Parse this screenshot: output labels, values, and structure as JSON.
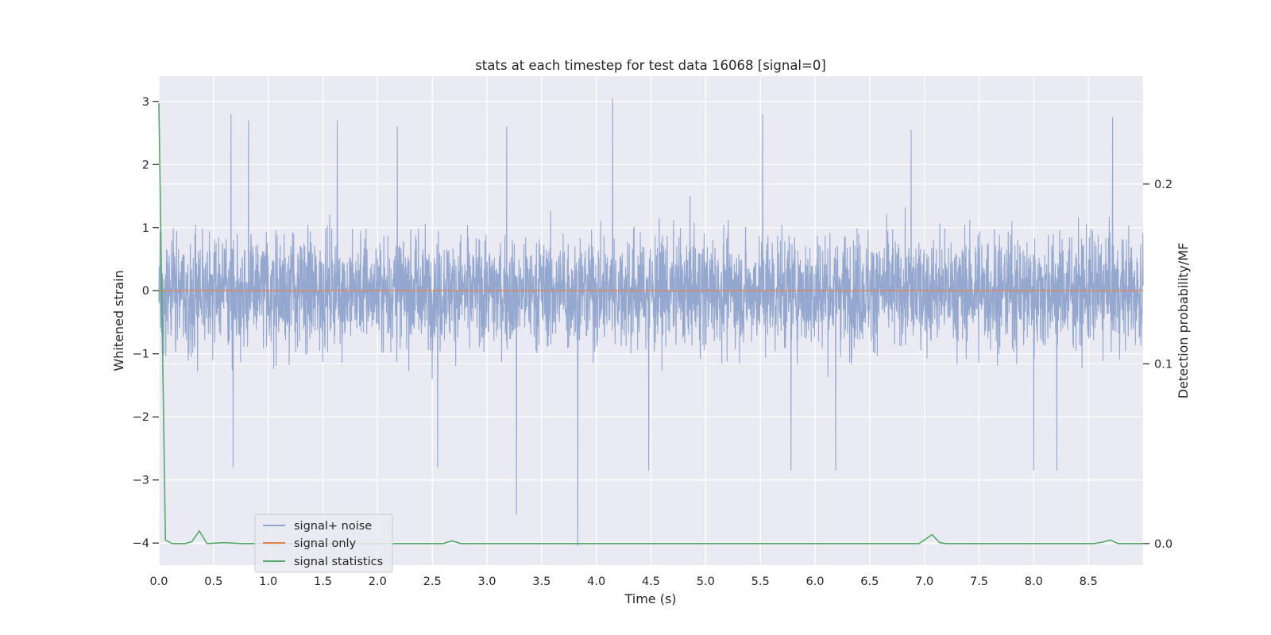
{
  "chart_data": {
    "type": "line",
    "title": "stats at each timestep for test data 16068 [signal=0]",
    "xlabel": "Time (s)",
    "ylabel": "Whitened strain",
    "y2label": "Detection probability/MF",
    "xlim": [
      0.0,
      9.0
    ],
    "ylim": [
      -4.35,
      3.4
    ],
    "y2lim": [
      -0.012,
      0.26
    ],
    "xticks": [
      "0.0",
      "0.5",
      "1.0",
      "1.5",
      "2.0",
      "2.5",
      "3.0",
      "3.5",
      "4.0",
      "4.5",
      "5.0",
      "5.5",
      "6.0",
      "6.5",
      "7.0",
      "7.5",
      "8.0",
      "8.5"
    ],
    "yticks": [
      "3",
      "2",
      "1",
      "0",
      "−1",
      "−2",
      "−3",
      "−4"
    ],
    "y2ticks": [
      "0.2",
      "0.1",
      "0.0"
    ],
    "grid": true,
    "legend_position": "lower-left",
    "legend": [
      {
        "label": "signal+ noise",
        "color": "#8fa3cc"
      },
      {
        "label": "signal only",
        "color": "#dd8452"
      },
      {
        "label": "signal statistics",
        "color": "#55a868"
      }
    ],
    "series": [
      {
        "name": "signal+ noise",
        "axis": "left",
        "color": "#8fa3cc",
        "description_samples": 4096,
        "envelope": {
          "typical_max": 1.3,
          "typical_min": -1.4
        },
        "spikes": [
          {
            "x": 0.66,
            "y": 2.8
          },
          {
            "x": 0.82,
            "y": 2.7
          },
          {
            "x": 1.63,
            "y": 2.7
          },
          {
            "x": 2.18,
            "y": 2.6
          },
          {
            "x": 3.18,
            "y": 2.6
          },
          {
            "x": 4.15,
            "y": 3.05
          },
          {
            "x": 5.52,
            "y": 2.8
          },
          {
            "x": 6.88,
            "y": 2.55
          },
          {
            "x": 8.72,
            "y": 2.75
          },
          {
            "x": 0.68,
            "y": -2.8
          },
          {
            "x": 2.55,
            "y": -2.8
          },
          {
            "x": 3.27,
            "y": -3.55
          },
          {
            "x": 3.83,
            "y": -4.05
          },
          {
            "x": 4.48,
            "y": -2.85
          },
          {
            "x": 5.78,
            "y": -2.85
          },
          {
            "x": 6.19,
            "y": -2.85
          },
          {
            "x": 8.0,
            "y": -2.85
          },
          {
            "x": 8.21,
            "y": -2.85
          }
        ]
      },
      {
        "name": "signal only",
        "axis": "left",
        "color": "#dd8452",
        "x": [
          0.0,
          9.0
        ],
        "values": [
          0.0,
          0.0
        ]
      },
      {
        "name": "signal statistics",
        "axis": "right",
        "color": "#55a868",
        "x": [
          0.0,
          0.06,
          0.12,
          0.24,
          0.3,
          0.37,
          0.44,
          0.6,
          0.75,
          2.6,
          2.68,
          2.76,
          6.95,
          7.0,
          7.07,
          7.14,
          7.2,
          8.55,
          8.63,
          8.7,
          8.77,
          8.85,
          9.0
        ],
        "values": [
          0.245,
          0.002,
          0.0,
          0.0,
          0.001,
          0.007,
          0.0,
          0.0005,
          0.0,
          0.0,
          0.0015,
          0.0,
          0.0,
          0.002,
          0.005,
          0.0005,
          0.0,
          0.0,
          0.0008,
          0.002,
          0.0,
          0.0,
          0.0
        ]
      }
    ]
  }
}
